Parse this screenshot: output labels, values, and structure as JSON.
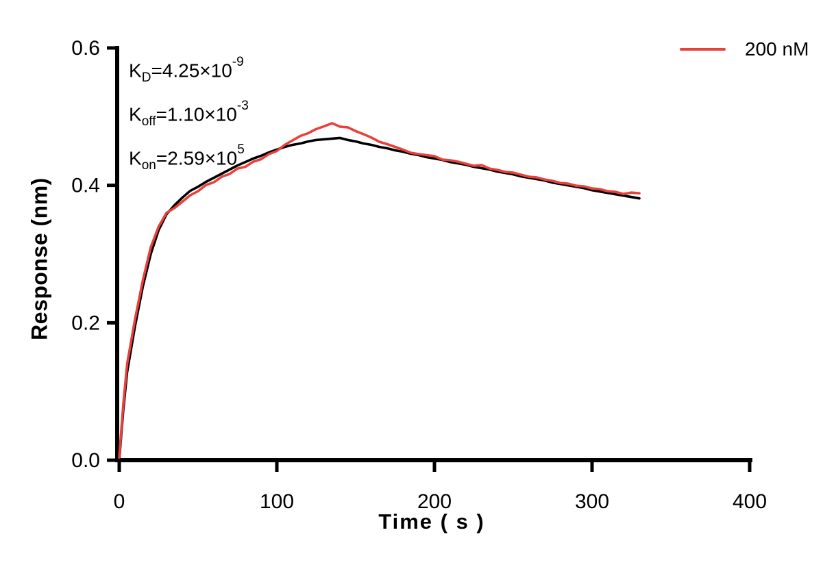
{
  "chart_data": {
    "type": "line",
    "title": "",
    "xlabel": "Time ( s )",
    "ylabel": "Response (nm)",
    "xlim": [
      0,
      400
    ],
    "ylim": [
      0,
      0.6
    ],
    "grid": false,
    "axis_color": "#000000",
    "x_ticks": [
      {
        "value": 0,
        "label": "0"
      },
      {
        "value": 100,
        "label": "100"
      },
      {
        "value": 200,
        "label": "200"
      },
      {
        "value": 300,
        "label": "300"
      },
      {
        "value": 400,
        "label": "400"
      }
    ],
    "y_ticks": [
      {
        "value": 0.0,
        "label": "0.0"
      },
      {
        "value": 0.2,
        "label": "0.2"
      },
      {
        "value": 0.4,
        "label": "0.4"
      },
      {
        "value": 0.6,
        "label": "0.6"
      }
    ],
    "legend": {
      "position": "top-right",
      "entries": [
        {
          "label": "200 nM",
          "color": "#E8413C"
        }
      ]
    },
    "kinetics": {
      "KD": "4.25×10-9",
      "Koff": "1.10×10-3",
      "Kon": "2.59×105"
    },
    "annotation_lines": [
      {
        "parts": [
          {
            "text": "K"
          },
          {
            "text": "D",
            "style": "sub"
          },
          {
            "text": "=4.25×10"
          },
          {
            "text": "-9",
            "style": "sup"
          }
        ]
      },
      {
        "parts": [
          {
            "text": "K"
          },
          {
            "text": "off",
            "style": "sub"
          },
          {
            "text": "=1.10×10"
          },
          {
            "text": "-3",
            "style": "sup"
          }
        ]
      },
      {
        "parts": [
          {
            "text": "K"
          },
          {
            "text": "on",
            "style": "sub"
          },
          {
            "text": "=2.59×10"
          },
          {
            "text": "5",
            "style": "sup"
          }
        ]
      }
    ],
    "series": [
      {
        "name": "fit-curve",
        "color": "#000000",
        "stroke_width": 3.6,
        "points": [
          [
            0,
            0.0
          ],
          [
            2.5,
            0.072
          ],
          [
            5,
            0.128
          ],
          [
            10,
            0.195
          ],
          [
            15,
            0.253
          ],
          [
            20,
            0.3
          ],
          [
            25,
            0.335
          ],
          [
            30,
            0.358
          ],
          [
            35,
            0.371
          ],
          [
            40,
            0.382
          ],
          [
            45,
            0.392
          ],
          [
            50,
            0.398
          ],
          [
            55,
            0.405
          ],
          [
            60,
            0.411
          ],
          [
            65,
            0.417
          ],
          [
            70,
            0.423
          ],
          [
            75,
            0.429
          ],
          [
            80,
            0.434
          ],
          [
            85,
            0.439
          ],
          [
            90,
            0.443
          ],
          [
            95,
            0.448
          ],
          [
            100,
            0.452
          ],
          [
            105,
            0.456
          ],
          [
            110,
            0.459
          ],
          [
            115,
            0.461
          ],
          [
            120,
            0.464
          ],
          [
            125,
            0.466
          ],
          [
            130,
            0.467
          ],
          [
            135,
            0.468
          ],
          [
            140,
            0.469
          ],
          [
            145,
            0.466
          ],
          [
            150,
            0.464
          ],
          [
            155,
            0.461
          ],
          [
            160,
            0.459
          ],
          [
            165,
            0.456
          ],
          [
            170,
            0.454
          ],
          [
            175,
            0.451
          ],
          [
            180,
            0.449
          ],
          [
            185,
            0.446
          ],
          [
            190,
            0.444
          ],
          [
            195,
            0.441
          ],
          [
            200,
            0.439
          ],
          [
            205,
            0.437
          ],
          [
            210,
            0.434
          ],
          [
            215,
            0.432
          ],
          [
            220,
            0.43
          ],
          [
            225,
            0.427
          ],
          [
            230,
            0.425
          ],
          [
            235,
            0.423
          ],
          [
            240,
            0.42
          ],
          [
            245,
            0.418
          ],
          [
            250,
            0.416
          ],
          [
            255,
            0.413
          ],
          [
            260,
            0.411
          ],
          [
            265,
            0.409
          ],
          [
            270,
            0.407
          ],
          [
            275,
            0.404
          ],
          [
            280,
            0.402
          ],
          [
            285,
            0.4
          ],
          [
            290,
            0.398
          ],
          [
            295,
            0.396
          ],
          [
            300,
            0.393
          ],
          [
            305,
            0.391
          ],
          [
            310,
            0.389
          ],
          [
            315,
            0.387
          ],
          [
            320,
            0.385
          ],
          [
            325,
            0.383
          ],
          [
            330,
            0.381
          ]
        ]
      },
      {
        "name": "data-200nM",
        "color": "#E8413C",
        "stroke_width": 3.6,
        "points": [
          [
            0,
            0.004
          ],
          [
            2.5,
            0.08
          ],
          [
            5,
            0.14
          ],
          [
            10,
            0.205
          ],
          [
            15,
            0.262
          ],
          [
            20,
            0.31
          ],
          [
            25,
            0.34
          ],
          [
            30,
            0.36
          ],
          [
            35,
            0.367
          ],
          [
            40,
            0.376
          ],
          [
            45,
            0.3855
          ],
          [
            50,
            0.3915
          ],
          [
            55,
            0.4005
          ],
          [
            60,
            0.4045
          ],
          [
            65,
            0.4125
          ],
          [
            70,
            0.4165
          ],
          [
            75,
            0.4245
          ],
          [
            80,
            0.427
          ],
          [
            85,
            0.4345
          ],
          [
            90,
            0.438
          ],
          [
            95,
            0.4455
          ],
          [
            100,
            0.45
          ],
          [
            105,
            0.459
          ],
          [
            110,
            0.4655
          ],
          [
            115,
            0.472
          ],
          [
            120,
            0.476
          ],
          [
            125,
            0.482
          ],
          [
            130,
            0.486
          ],
          [
            135,
            0.4905
          ],
          [
            140,
            0.4855
          ],
          [
            145,
            0.4845
          ],
          [
            150,
            0.479
          ],
          [
            155,
            0.4745
          ],
          [
            160,
            0.4695
          ],
          [
            165,
            0.4635
          ],
          [
            170,
            0.46
          ],
          [
            175,
            0.456
          ],
          [
            180,
            0.452
          ],
          [
            185,
            0.4475
          ],
          [
            190,
            0.4455
          ],
          [
            195,
            0.444
          ],
          [
            200,
            0.4425
          ],
          [
            205,
            0.4375
          ],
          [
            210,
            0.4365
          ],
          [
            215,
            0.4345
          ],
          [
            220,
            0.4315
          ],
          [
            225,
            0.4285
          ],
          [
            230,
            0.4295
          ],
          [
            235,
            0.4245
          ],
          [
            240,
            0.4225
          ],
          [
            245,
            0.4195
          ],
          [
            250,
            0.4185
          ],
          [
            255,
            0.4155
          ],
          [
            260,
            0.4125
          ],
          [
            265,
            0.4115
          ],
          [
            270,
            0.4085
          ],
          [
            275,
            0.4065
          ],
          [
            280,
            0.4035
          ],
          [
            285,
            0.4025
          ],
          [
            290,
            0.3995
          ],
          [
            295,
            0.3985
          ],
          [
            300,
            0.3955
          ],
          [
            305,
            0.3945
          ],
          [
            310,
            0.3915
          ],
          [
            315,
            0.3905
          ],
          [
            320,
            0.3875
          ],
          [
            325,
            0.3895
          ],
          [
            330,
            0.3885
          ]
        ]
      }
    ]
  }
}
